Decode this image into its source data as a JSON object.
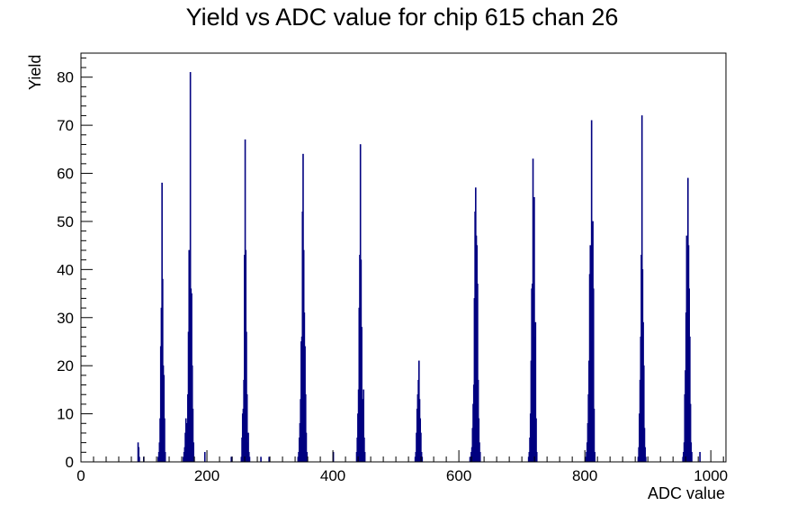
{
  "chart_data": {
    "type": "bar",
    "title": "Yield vs ADC value for chip 615 chan 26",
    "xlabel": "ADC value",
    "ylabel": "Yield",
    "xlim": [
      0,
      1024
    ],
    "ylim": [
      0,
      85
    ],
    "xticks": [
      0,
      200,
      400,
      600,
      800,
      1000
    ],
    "yticks": [
      0,
      10,
      20,
      30,
      40,
      50,
      60,
      70,
      80
    ],
    "bin_width": 1,
    "grid": false,
    "legend": "none",
    "color": "#000080",
    "peaks": [
      {
        "x": [
          90,
          91,
          92,
          99
        ],
        "values": [
          4,
          3,
          1,
          1
        ]
      },
      {
        "x": [
          122,
          123,
          124,
          125,
          126,
          127,
          128,
          129,
          130,
          131,
          132,
          133
        ],
        "values": [
          1,
          2,
          4,
          9,
          24,
          32,
          58,
          38,
          20,
          18,
          9,
          2
        ]
      },
      {
        "x": [
          162,
          163,
          164,
          165,
          166,
          167,
          168,
          169,
          170,
          171,
          172,
          173,
          174,
          175,
          176,
          177,
          178,
          179
        ],
        "values": [
          1,
          2,
          3,
          6,
          9,
          5,
          8,
          14,
          27,
          44,
          34,
          81,
          36,
          35,
          20,
          11,
          4,
          1
        ]
      },
      {
        "x": [
          196,
          238,
          239
        ],
        "values": [
          2,
          1,
          1
        ]
      },
      {
        "x": [
          254,
          255,
          256,
          257,
          258,
          259,
          260,
          261,
          262,
          263,
          264,
          265,
          266,
          267
        ],
        "values": [
          1,
          5,
          10,
          11,
          17,
          43,
          67,
          44,
          27,
          14,
          4,
          6,
          2,
          1
        ]
      },
      {
        "x": [
          285,
          298
        ],
        "values": [
          1,
          1
        ]
      },
      {
        "x": [
          344,
          345,
          346,
          347,
          348,
          349,
          350,
          351,
          352,
          353,
          354,
          355,
          356,
          357,
          358
        ],
        "values": [
          1,
          2,
          5,
          8,
          13,
          25,
          26,
          52,
          64,
          44,
          31,
          24,
          14,
          6,
          2
        ]
      },
      {
        "x": [
          400,
          437,
          438,
          439,
          440,
          441,
          442,
          443,
          444,
          445,
          446,
          447,
          448,
          449,
          450
        ],
        "values": [
          2,
          2,
          5,
          10,
          15,
          32,
          43,
          66,
          42,
          28,
          13,
          7,
          15,
          5,
          2
        ]
      },
      {
        "x": [
          530,
          531,
          532,
          533,
          534,
          535,
          536,
          537,
          538,
          539,
          540,
          541
        ],
        "values": [
          1,
          2,
          6,
          11,
          14,
          17,
          21,
          13,
          9,
          6,
          2,
          1
        ]
      },
      {
        "x": [
          617,
          618,
          619,
          620,
          621,
          622,
          623,
          624,
          625,
          626,
          627,
          628,
          629,
          630,
          631,
          632,
          633
        ],
        "values": [
          1,
          1,
          2,
          3,
          7,
          12,
          16,
          34,
          52,
          57,
          47,
          45,
          37,
          17,
          9,
          4,
          2
        ]
      },
      {
        "x": [
          710,
          711,
          712,
          713,
          714,
          715,
          716,
          717,
          718,
          719,
          720,
          721,
          722,
          723
        ],
        "values": [
          1,
          2,
          5,
          10,
          21,
          36,
          37,
          63,
          35,
          55,
          26,
          29,
          9,
          2
        ]
      },
      {
        "x": [
          801,
          802,
          803,
          804,
          805,
          806,
          807,
          808,
          809,
          810,
          811,
          812,
          813,
          814,
          815
        ],
        "values": [
          1,
          2,
          4,
          8,
          14,
          21,
          39,
          45,
          25,
          71,
          49,
          50,
          36,
          11,
          2
        ]
      },
      {
        "x": [
          884,
          885,
          886,
          887,
          888,
          889,
          890,
          891,
          892,
          893,
          894,
          895,
          896
        ],
        "values": [
          1,
          3,
          10,
          17,
          26,
          43,
          72,
          40,
          29,
          20,
          7,
          3,
          1
        ]
      },
      {
        "x": [
          955,
          956,
          957,
          958,
          959,
          960,
          961,
          962,
          963,
          964,
          965,
          966,
          967,
          968,
          969,
          982
        ],
        "values": [
          1,
          2,
          4,
          14,
          19,
          31,
          47,
          44,
          59,
          45,
          36,
          26,
          12,
          4,
          2,
          2
        ]
      }
    ]
  }
}
